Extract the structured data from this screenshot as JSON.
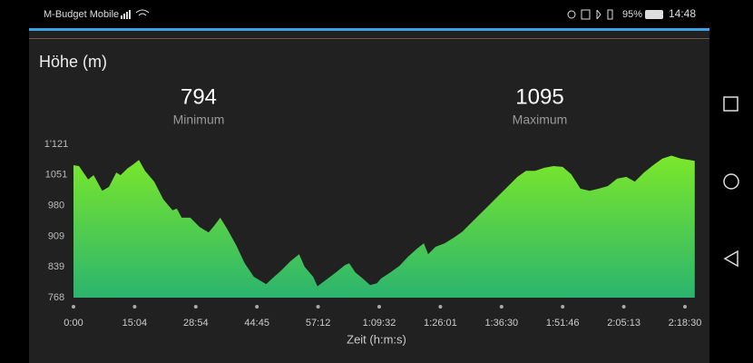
{
  "status_bar": {
    "carrier": "M-Budget Mobile",
    "battery": "95%",
    "time": "14:48"
  },
  "chart_data": {
    "type": "area",
    "title": "Höhe (m)",
    "stats": [
      {
        "value": "794",
        "label": "Minimum"
      },
      {
        "value": "1095",
        "label": "Maximum"
      }
    ],
    "x_label": "Zeit (h:m:s)",
    "color_top": "#7be82a",
    "color_bottom": "#2bb46e",
    "xlim": [
      0,
      10.16
    ],
    "xticks": [
      {
        "value": 0,
        "label": "0:00"
      },
      {
        "value": 1,
        "label": "15:04"
      },
      {
        "value": 2,
        "label": "28:54"
      },
      {
        "value": 3,
        "label": "44:45"
      },
      {
        "value": 4,
        "label": "57:12"
      },
      {
        "value": 5,
        "label": "1:09:32"
      },
      {
        "value": 6,
        "label": "1:26:01"
      },
      {
        "value": 7,
        "label": "1:36:30"
      },
      {
        "value": 8,
        "label": "1:51:46"
      },
      {
        "value": 9,
        "label": "2:05:13"
      },
      {
        "value": 10,
        "label": "2:18:30"
      }
    ],
    "ylim": [
      768,
      1121
    ],
    "yticks": [
      768,
      839,
      909,
      980,
      1051,
      {
        "value": 1121,
        "label": "1'121"
      }
    ],
    "x": [
      0,
      0.09,
      0.24,
      0.33,
      0.47,
      0.58,
      0.7,
      0.77,
      0.88,
      0.98,
      1.07,
      1.17,
      1.32,
      1.47,
      1.62,
      1.69,
      1.77,
      1.91,
      2.06,
      2.21,
      2.31,
      2.4,
      2.51,
      2.66,
      2.8,
      2.95,
      3.15,
      3.25,
      3.4,
      3.55,
      3.69,
      3.78,
      3.92,
      3.99,
      4.14,
      4.29,
      4.44,
      4.51,
      4.61,
      4.73,
      4.85,
      4.96,
      5.03,
      5.18,
      5.33,
      5.47,
      5.62,
      5.73,
      5.8,
      5.92,
      6.07,
      6.22,
      6.36,
      6.51,
      6.66,
      6.81,
      6.96,
      7.11,
      7.26,
      7.4,
      7.55,
      7.7,
      7.85,
      8.0,
      8.14,
      8.29,
      8.44,
      8.59,
      8.74,
      8.89,
      9.04,
      9.18,
      9.33,
      9.48,
      9.63,
      9.78,
      9.93,
      10.16
    ],
    "values": [
      1073,
      1071,
      1040,
      1050,
      1014,
      1023,
      1056,
      1050,
      1065,
      1075,
      1085,
      1060,
      1035,
      994,
      969,
      973,
      952,
      952,
      931,
      918,
      935,
      952,
      927,
      889,
      847,
      816,
      799,
      812,
      831,
      852,
      868,
      839,
      816,
      794,
      810,
      826,
      843,
      847,
      826,
      812,
      797,
      801,
      812,
      826,
      841,
      862,
      881,
      893,
      868,
      885,
      893,
      906,
      920,
      941,
      962,
      983,
      1004,
      1025,
      1046,
      1060,
      1060,
      1067,
      1071,
      1069,
      1052,
      1019,
      1014,
      1019,
      1025,
      1042,
      1046,
      1035,
      1056,
      1073,
      1088,
      1095,
      1088,
      1083
    ]
  }
}
